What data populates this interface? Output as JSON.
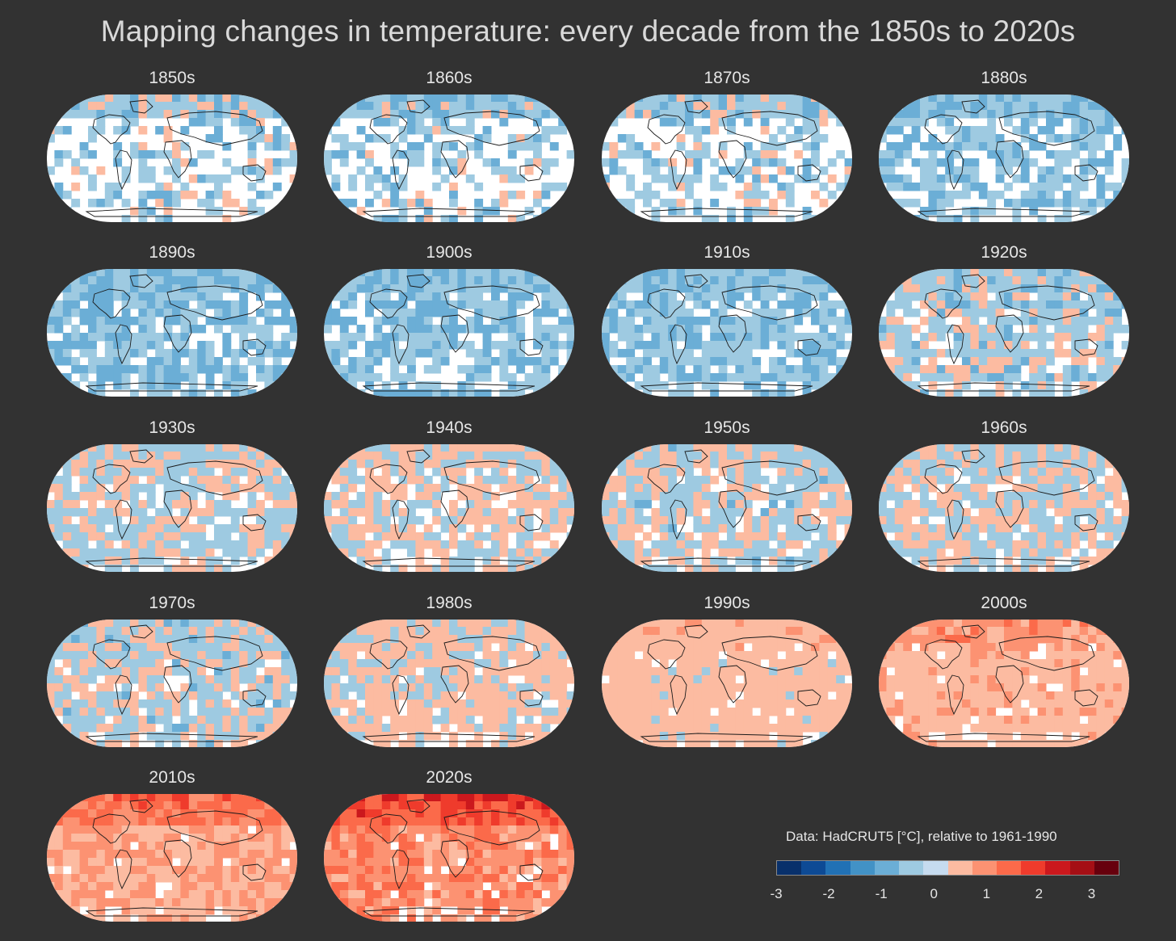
{
  "title": "Mapping changes in temperature: every decade from the 1850s to 2020s",
  "panels": [
    {
      "label": "1850s",
      "anomaly": -0.3,
      "coverage": 0.45
    },
    {
      "label": "1860s",
      "anomaly": -0.35,
      "coverage": 0.5
    },
    {
      "label": "1870s",
      "anomaly": -0.3,
      "coverage": 0.5
    },
    {
      "label": "1880s",
      "anomaly": -0.45,
      "coverage": 0.65
    },
    {
      "label": "1890s",
      "anomaly": -0.5,
      "coverage": 0.75
    },
    {
      "label": "1900s",
      "anomaly": -0.45,
      "coverage": 0.8
    },
    {
      "label": "1910s",
      "anomaly": -0.45,
      "coverage": 0.8
    },
    {
      "label": "1920s",
      "anomaly": -0.2,
      "coverage": 0.85
    },
    {
      "label": "1930s",
      "anomaly": -0.05,
      "coverage": 0.85
    },
    {
      "label": "1940s",
      "anomaly": 0.05,
      "coverage": 0.82
    },
    {
      "label": "1950s",
      "anomaly": -0.1,
      "coverage": 0.85
    },
    {
      "label": "1960s",
      "anomaly": -0.05,
      "coverage": 0.88
    },
    {
      "label": "1970s",
      "anomaly": -0.1,
      "coverage": 0.9
    },
    {
      "label": "1980s",
      "anomaly": 0.2,
      "coverage": 0.92
    },
    {
      "label": "1990s",
      "anomaly": 0.4,
      "coverage": 0.93
    },
    {
      "label": "2000s",
      "anomaly": 0.7,
      "coverage": 0.95
    },
    {
      "label": "2010s",
      "anomaly": 1.0,
      "coverage": 0.95
    },
    {
      "label": "2020s",
      "anomaly": 1.3,
      "coverage": 0.95
    }
  ],
  "legend": {
    "title": "Data: HadCRUT5 [°C], relative to 1961-1990",
    "ticks": [
      "-3",
      "-2",
      "-1",
      "0",
      "1",
      "2",
      "3"
    ],
    "colors": [
      "#08306b",
      "#0d4a95",
      "#2171b5",
      "#4292c6",
      "#6baed6",
      "#9ecae1",
      "#c6dbef",
      "#fcbba1",
      "#fc9272",
      "#fb6a4a",
      "#ef3b2c",
      "#cb181d",
      "#a50f15",
      "#67000d"
    ]
  },
  "chart_data": {
    "type": "heatmap",
    "title": "Mapping changes in temperature: every decade from the 1850s to 2020s",
    "panels": [
      "1850s",
      "1860s",
      "1870s",
      "1880s",
      "1890s",
      "1900s",
      "1910s",
      "1920s",
      "1930s",
      "1940s",
      "1950s",
      "1960s",
      "1970s",
      "1980s",
      "1990s",
      "2000s",
      "2010s",
      "2020s"
    ],
    "colorbar_label": "Data: HadCRUT5 [°C], relative to 1961-1990",
    "colorbar_range": [
      -3,
      3.5
    ],
    "colorbar_ticks": [
      -3,
      -2,
      -1,
      0,
      1,
      2,
      3
    ]
  }
}
